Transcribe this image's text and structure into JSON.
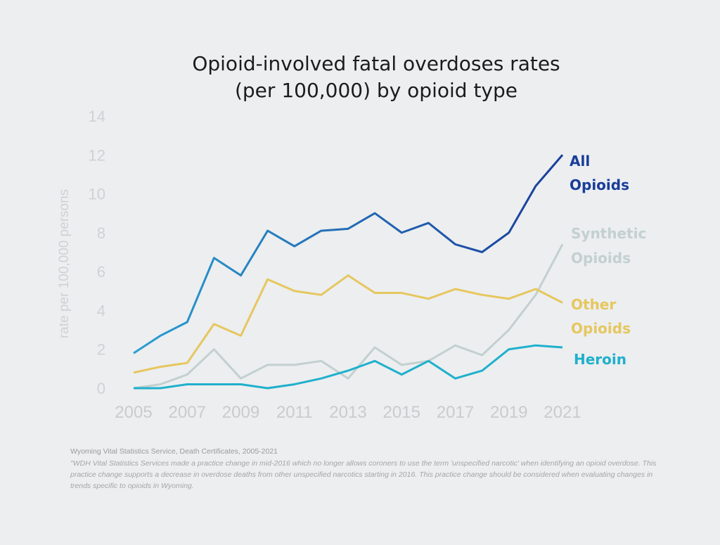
{
  "chart_data": {
    "type": "line",
    "title_line1": "Opioid-involved fatal overdoses rates",
    "title_line2": "(per 100,000) by opioid type",
    "xlabel": "",
    "ylabel": "rate per 100,000 persons",
    "ylim": [
      0,
      14
    ],
    "yticks": [
      "0",
      "2",
      "4",
      "6",
      "8",
      "10",
      "12",
      "14"
    ],
    "xticks": [
      "2005",
      "2007",
      "2009",
      "2011",
      "2013",
      "2015",
      "2017",
      "2019",
      "2021"
    ],
    "x": [
      2005,
      2006,
      2007,
      2008,
      2009,
      2010,
      2011,
      2012,
      2013,
      2014,
      2015,
      2016,
      2017,
      2018,
      2019,
      2020,
      2021
    ],
    "grid": false,
    "legend": "right end labels",
    "series": [
      {
        "name_line1": "All",
        "name_line2": "Opioids",
        "color": "#1a3d9a",
        "color_start": "#2a9fd0",
        "values": [
          1.8,
          2.7,
          3.4,
          6.7,
          5.8,
          8.1,
          7.3,
          8.1,
          8.2,
          9.0,
          8.0,
          8.5,
          7.4,
          7.0,
          8.0,
          10.4,
          12.0
        ]
      },
      {
        "name_line1": "Synthetic",
        "name_line2": "Opioids",
        "color": "#c3d0cf",
        "values": [
          0,
          0.2,
          0.7,
          2.0,
          0.5,
          1.2,
          1.2,
          1.4,
          0.5,
          2.1,
          1.2,
          1.4,
          2.2,
          1.7,
          3.0,
          4.8,
          7.4
        ]
      },
      {
        "name_line1": "Other",
        "name_line2": "Opioids",
        "color": "#e6c75e",
        "values": [
          0.8,
          1.1,
          1.3,
          3.3,
          2.7,
          5.6,
          5.0,
          4.8,
          5.8,
          4.9,
          4.9,
          4.6,
          5.1,
          4.8,
          4.6,
          5.1,
          4.4
        ]
      },
      {
        "name_line1": "Heroin",
        "name_line2": "",
        "color": "#1fb0cc",
        "values": [
          0,
          0,
          0.2,
          0.2,
          0.2,
          0,
          0.2,
          0.5,
          0.9,
          1.4,
          0.7,
          1.4,
          0.5,
          0.9,
          2.0,
          2.2,
          2.1
        ]
      }
    ]
  },
  "source": "Wyoming Vital Statistics Service, Death Certificates, 2005-2021",
  "note": "\"WDH Vital Statistics Services made a practice change in mid-2016 which no longer allows coroners to use the term 'unspecified narcotic' when identifying an opioid overdose. This practice change supports a decrease in overdose deaths from other unspecified narcotics starting in 2016. This practice change should be considered when evaluating changes in trends specific to opioids in Wyoming."
}
